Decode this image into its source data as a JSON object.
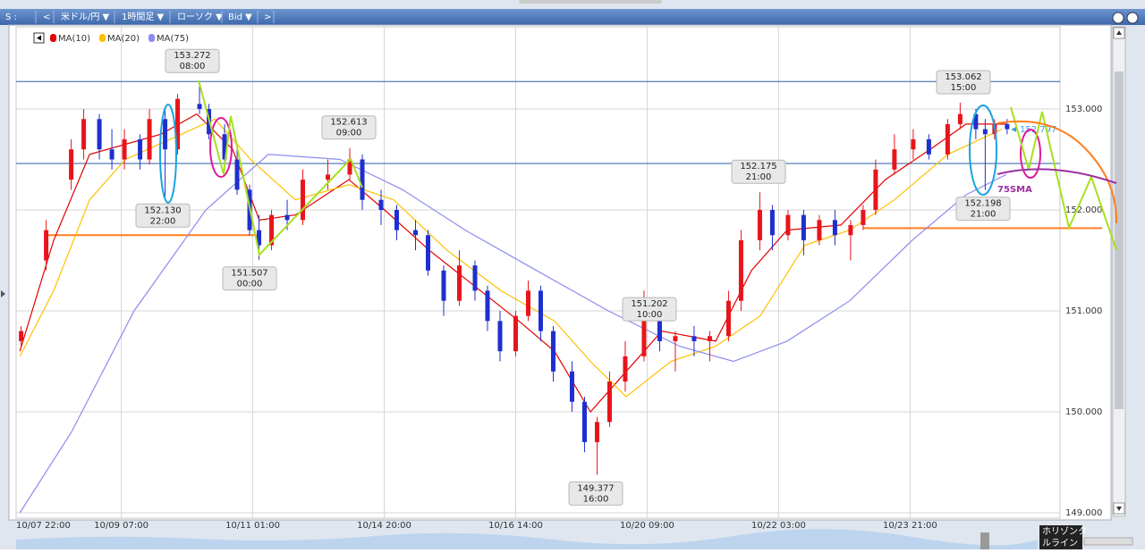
{
  "toolbar": {
    "symbol_prefix": "S :",
    "prev": "<",
    "pair": "米ドル/円 ▼",
    "timeframe": "1時間足 ▼",
    "style": "ローソク ▼",
    "side": "Bid ▼",
    "next": ">"
  },
  "horizontal_line_button": [
    "ホリゾンタ",
    "ルライン"
  ],
  "chart_data": {
    "type": "candlestick",
    "legend": [
      "MA(10)",
      "MA(20)",
      "MA(75)"
    ],
    "x": [
      1,
      9,
      17,
      21,
      26,
      30,
      34,
      39,
      42,
      47,
      51,
      58,
      61,
      66,
      70,
      74,
      77,
      81,
      86,
      91,
      99,
      106,
      110,
      116,
      121,
      127,
      131,
      136,
      141,
      146,
      150,
      154,
      159,
      163,
      167,
      171,
      177,
      181,
      185,
      189,
      194,
      200,
      205,
      210,
      216,
      221,
      227,
      231,
      237,
      241,
      246,
      251,
      256,
      261,
      266,
      270,
      274,
      280,
      286,
      291,
      297,
      301,
      306,
      309,
      312,
      316
    ],
    "open": [
      150.7,
      151.5,
      152.3,
      152.6,
      152.9,
      152.6,
      152.5,
      152.7,
      152.5,
      152.9,
      152.6,
      153.05,
      153.0,
      152.75,
      152.5,
      152.2,
      151.8,
      151.65,
      151.95,
      151.9,
      152.3,
      152.35,
      152.5,
      152.1,
      152.0,
      151.8,
      151.75,
      151.4,
      151.1,
      151.45,
      151.2,
      150.9,
      150.6,
      150.95,
      151.2,
      150.8,
      150.4,
      150.1,
      149.7,
      149.9,
      150.3,
      150.55,
      151.0,
      150.7,
      150.75,
      150.7,
      150.75,
      151.1,
      151.7,
      152.0,
      151.75,
      151.95,
      151.7,
      151.9,
      151.75,
      151.85,
      152.0,
      152.4,
      152.6,
      152.7,
      152.55,
      152.85,
      152.95,
      152.8,
      152.75,
      152.85
    ],
    "high": [
      150.85,
      151.9,
      152.7,
      153.0,
      152.95,
      152.8,
      152.8,
      152.75,
      153.0,
      153.0,
      153.15,
      153.272,
      153.05,
      152.85,
      152.6,
      152.25,
      151.95,
      152.0,
      152.1,
      152.4,
      152.5,
      152.613,
      152.55,
      152.2,
      152.05,
      151.9,
      151.8,
      151.45,
      151.6,
      151.5,
      151.25,
      151.0,
      151.0,
      151.3,
      151.25,
      150.85,
      150.5,
      150.15,
      149.95,
      150.4,
      150.7,
      151.202,
      151.05,
      150.8,
      150.85,
      150.8,
      151.2,
      151.8,
      152.175,
      152.05,
      152.0,
      152.0,
      151.95,
      152.0,
      151.9,
      152.05,
      152.5,
      152.75,
      152.8,
      152.75,
      152.9,
      153.062,
      153.0,
      152.9,
      152.9,
      152.9
    ],
    "low": [
      150.65,
      151.4,
      152.2,
      152.5,
      152.5,
      152.4,
      152.4,
      152.4,
      152.45,
      152.13,
      152.55,
      152.95,
      152.7,
      152.45,
      152.15,
      151.75,
      151.507,
      151.6,
      151.8,
      151.85,
      152.2,
      152.3,
      152.0,
      151.85,
      151.7,
      151.6,
      151.35,
      150.95,
      151.05,
      151.1,
      150.8,
      150.5,
      150.55,
      150.9,
      150.7,
      150.3,
      150.0,
      149.6,
      149.377,
      149.85,
      150.2,
      150.5,
      150.6,
      150.4,
      150.55,
      150.5,
      150.7,
      151.0,
      151.6,
      151.6,
      151.7,
      151.55,
      151.65,
      151.65,
      151.5,
      151.8,
      151.95,
      152.35,
      152.5,
      152.5,
      152.5,
      152.8,
      152.7,
      152.198,
      152.7,
      152.75
    ],
    "close": [
      150.8,
      151.8,
      152.6,
      152.9,
      152.6,
      152.5,
      152.7,
      152.5,
      152.9,
      152.6,
      153.1,
      153.0,
      152.75,
      152.5,
      152.2,
      151.8,
      151.65,
      151.95,
      151.9,
      152.3,
      152.35,
      152.5,
      152.1,
      152.0,
      151.8,
      151.75,
      151.4,
      151.1,
      151.45,
      151.2,
      150.9,
      150.6,
      150.95,
      151.2,
      150.8,
      150.4,
      150.1,
      149.7,
      149.9,
      150.3,
      150.55,
      151.0,
      150.7,
      150.75,
      150.7,
      150.75,
      151.1,
      151.7,
      152.0,
      151.75,
      151.95,
      151.7,
      151.9,
      151.75,
      151.85,
      152.0,
      152.4,
      152.6,
      152.7,
      152.55,
      152.85,
      152.95,
      152.8,
      152.75,
      152.85,
      152.8
    ],
    "up_color": "#e8141b",
    "down_color": "#1e2fcf",
    "series": [
      {
        "name": "MA(10)",
        "color": "#e30000",
        "x": [
          0.6,
          11.4,
          22.9,
          34.3,
          45.7,
          57.1,
          68.6,
          77.1,
          88.6,
          105.7,
          117.1,
          131.4,
          145.7,
          160,
          171.4,
          182.9,
          194.3,
          205.7,
          222.9,
          234.3,
          245.7,
          262.9,
          277.1,
          291.4,
          302.9,
          315.7
        ],
        "values": [
          150.6,
          151.7,
          152.55,
          152.65,
          152.75,
          152.95,
          152.6,
          151.9,
          151.95,
          152.3,
          152.0,
          151.6,
          151.25,
          150.9,
          150.6,
          150.0,
          150.4,
          150.8,
          150.7,
          151.4,
          151.8,
          151.85,
          152.3,
          152.6,
          152.85,
          152.85
        ]
      },
      {
        "name": "MA(20)",
        "color": "#ffc000",
        "x": [
          0.6,
          11.4,
          22.9,
          34.3,
          48.6,
          62.9,
          74.3,
          88.6,
          105.7,
          120,
          137.1,
          154.3,
          171.4,
          182.9,
          194.3,
          208.6,
          222.9,
          237.1,
          251.4,
          265.7,
          280,
          297.1,
          314.3
        ],
        "values": [
          150.55,
          151.2,
          152.1,
          152.5,
          152.7,
          152.9,
          152.5,
          152.1,
          152.25,
          152.1,
          151.6,
          151.2,
          150.9,
          150.5,
          150.15,
          150.5,
          150.65,
          150.95,
          151.65,
          151.8,
          152.1,
          152.55,
          152.8
        ]
      },
      {
        "name": "MA(75)",
        "color": "#8c8cf0",
        "x": [
          0.6,
          17.1,
          37.1,
          60,
          80,
          102.9,
          122.9,
          142.9,
          165.7,
          188.6,
          211.4,
          228.6,
          245.7,
          265.7,
          285.7,
          302.9,
          315.7
        ],
        "values": [
          149.0,
          149.8,
          151.0,
          152.0,
          152.55,
          152.5,
          152.2,
          151.8,
          151.4,
          151.0,
          150.65,
          150.5,
          150.7,
          151.1,
          151.7,
          152.15,
          152.35
        ]
      }
    ],
    "xlim": [
      -0.6,
      332.9
    ],
    "xticks": [
      {
        "value": 0,
        "label": "10/07 22:00"
      },
      {
        "value": 33,
        "label": "10/09 07:00"
      },
      {
        "value": 75,
        "label": "10/11 01:00"
      },
      {
        "value": 117,
        "label": "10/14 20:00"
      },
      {
        "value": 159,
        "label": "10/16 14:00"
      },
      {
        "value": 201,
        "label": "10/20 09:00"
      },
      {
        "value": 243,
        "label": "10/22 03:00"
      },
      {
        "value": 285,
        "label": "10/23 21:00"
      }
    ],
    "ylim": [
      148.947,
      153.814
    ],
    "yticks": [
      {
        "value": 153,
        "label": "153.000"
      },
      {
        "value": 152,
        "label": "152.000"
      },
      {
        "value": 151,
        "label": "151.000"
      },
      {
        "value": 150,
        "label": "150.000"
      },
      {
        "value": 149,
        "label": "149.000"
      }
    ],
    "grid": true,
    "last_price": 152.797,
    "horizontal_lines": [
      {
        "value": 153.272,
        "color": "#2a5fa6"
      },
      {
        "value": 152.46,
        "color": "#2a5fa6"
      },
      {
        "value": 151.75,
        "color": "#ff7f1e"
      },
      {
        "value": 151.82,
        "color": "#ff7f1e"
      }
    ],
    "annotations": [
      {
        "value": 153.272,
        "label": "153.272",
        "time": "08:00"
      },
      {
        "value": 152.13,
        "label": "152.130",
        "time": "22:00"
      },
      {
        "value": 152.613,
        "label": "152.613",
        "time": "09:00"
      },
      {
        "value": 151.507,
        "label": "151.507",
        "time": "00:00"
      },
      {
        "value": 152.175,
        "label": "152.175",
        "time": "21:00"
      },
      {
        "value": 151.202,
        "label": "151.202",
        "time": "10:00"
      },
      {
        "value": 149.377,
        "label": "149.377",
        "time": "16:00"
      },
      {
        "value": 153.062,
        "label": "153.062",
        "time": "15:00"
      },
      {
        "value": 152.198,
        "label": "152.198",
        "time": "21:00"
      }
    ],
    "drawing_label": "75SMA"
  }
}
